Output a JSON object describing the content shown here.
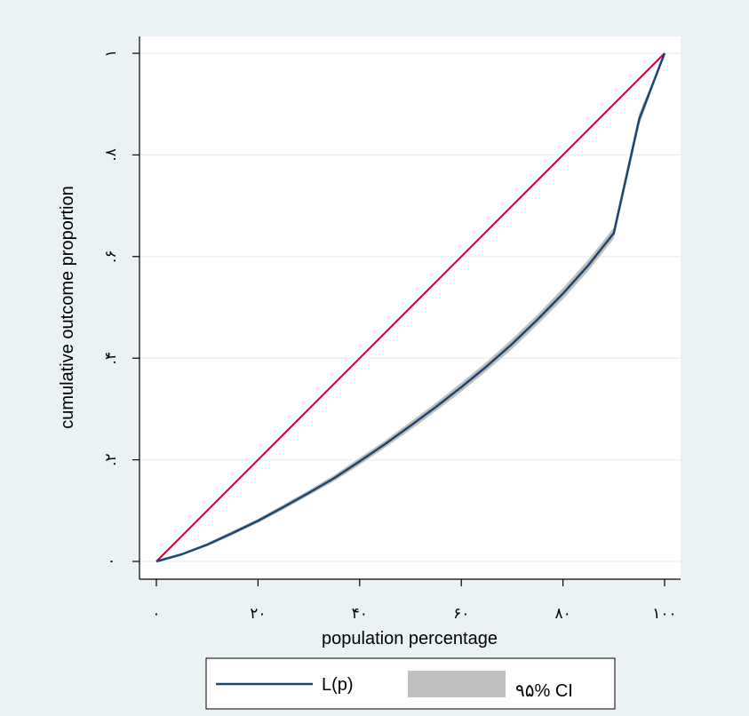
{
  "chart_data": {
    "type": "line",
    "title": "",
    "xlabel": "population percentage",
    "ylabel": "cumulative outcome proportion",
    "xlim": [
      0,
      100
    ],
    "ylim": [
      0,
      1
    ],
    "grid": true,
    "x_ticks": [
      {
        "value": 0,
        "label": "۰"
      },
      {
        "value": 20,
        "label": "۲۰"
      },
      {
        "value": 40,
        "label": "۴۰"
      },
      {
        "value": 60,
        "label": "۶۰"
      },
      {
        "value": 80,
        "label": "۸۰"
      },
      {
        "value": 100,
        "label": "۱۰۰"
      }
    ],
    "y_ticks": [
      {
        "value": 0,
        "label": "۰"
      },
      {
        "value": 0.2,
        "label": ".۲"
      },
      {
        "value": 0.4,
        "label": ".۴"
      },
      {
        "value": 0.6,
        "label": ".۶"
      },
      {
        "value": 0.8,
        "label": ".۸"
      },
      {
        "value": 1,
        "label": "۱"
      }
    ],
    "x": [
      0,
      5,
      10,
      15,
      20,
      25,
      30,
      35,
      40,
      45,
      50,
      55,
      60,
      65,
      70,
      75,
      80,
      85,
      90,
      95,
      100
    ],
    "series": [
      {
        "name": "L(p)",
        "color": "#1a476f",
        "values": [
          0,
          0.014,
          0.033,
          0.056,
          0.08,
          0.107,
          0.135,
          0.164,
          0.197,
          0.231,
          0.267,
          0.304,
          0.343,
          0.384,
          0.428,
          0.476,
          0.527,
          0.583,
          0.646,
          0.87,
          1.0
        ]
      },
      {
        "name": "",
        "color": "#c10534",
        "values": [
          0,
          0.05,
          0.1,
          0.15,
          0.2,
          0.25,
          0.3,
          0.35,
          0.4,
          0.45,
          0.5,
          0.55,
          0.6,
          0.65,
          0.7,
          0.75,
          0.8,
          0.85,
          0.9,
          0.95,
          1.0
        ]
      }
    ],
    "ci_band": {
      "name": "۹۵% CI",
      "color": "#c0c0c0",
      "lower": [
        0,
        0.012,
        0.03,
        0.052,
        0.076,
        0.102,
        0.13,
        0.158,
        0.19,
        0.224,
        0.259,
        0.296,
        0.334,
        0.375,
        0.418,
        0.466,
        0.516,
        0.572,
        0.635,
        0.858,
        1.0
      ],
      "upper": [
        0,
        0.016,
        0.036,
        0.06,
        0.084,
        0.112,
        0.14,
        0.17,
        0.204,
        0.238,
        0.275,
        0.312,
        0.352,
        0.393,
        0.438,
        0.486,
        0.538,
        0.594,
        0.657,
        0.882,
        1.0
      ]
    },
    "legend": {
      "position": "bottom",
      "entries": [
        {
          "label": "L(p)",
          "kind": "line",
          "color": "#1a476f"
        },
        {
          "label": "۹۵% CI",
          "kind": "band",
          "color": "#c0c0c0"
        }
      ]
    }
  }
}
